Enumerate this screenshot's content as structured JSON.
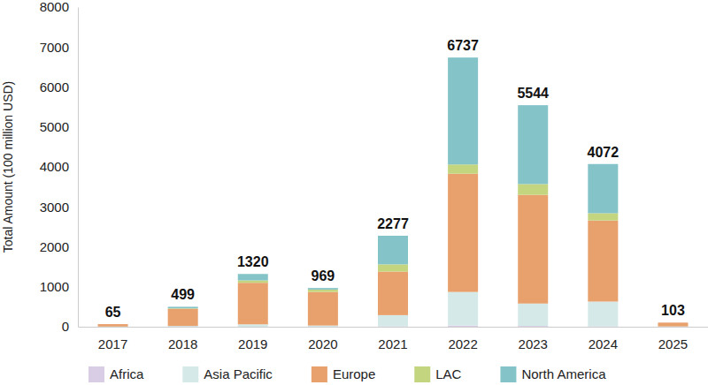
{
  "chart_data": {
    "type": "bar",
    "stacked": true,
    "legend": "bottom",
    "grid": false,
    "y_label": "Total Amount (100 million USD)",
    "categories": [
      "2017",
      "2018",
      "2019",
      "2020",
      "2021",
      "2022",
      "2023",
      "2024",
      "2025"
    ],
    "series": [
      {
        "name": "Africa",
        "color": "#d9cde6",
        "values": [
          0,
          0,
          0,
          0,
          10,
          30,
          20,
          10,
          0
        ]
      },
      {
        "name": "Asia Pacific",
        "color": "#d5e9e9",
        "values": [
          5,
          20,
          60,
          30,
          280,
          840,
          560,
          620,
          8
        ]
      },
      {
        "name": "Europe",
        "color": "#e8a16c",
        "values": [
          60,
          430,
          1040,
          840,
          1090,
          2960,
          2720,
          2030,
          95
        ]
      },
      {
        "name": "LAC",
        "color": "#c3d67f",
        "values": [
          0,
          10,
          60,
          60,
          180,
          230,
          270,
          180,
          0
        ]
      },
      {
        "name": "North America",
        "color": "#84c3c8",
        "values": [
          0,
          39,
          160,
          39,
          717,
          2677,
          1974,
          1232,
          0
        ]
      }
    ],
    "totals": [
      65,
      499,
      1320,
      969,
      2277,
      6737,
      5544,
      4072,
      103
    ],
    "ylim": [
      0,
      8000
    ],
    "yticks": [
      0,
      1000,
      2000,
      3000,
      4000,
      5000,
      6000,
      7000,
      8000
    ]
  }
}
